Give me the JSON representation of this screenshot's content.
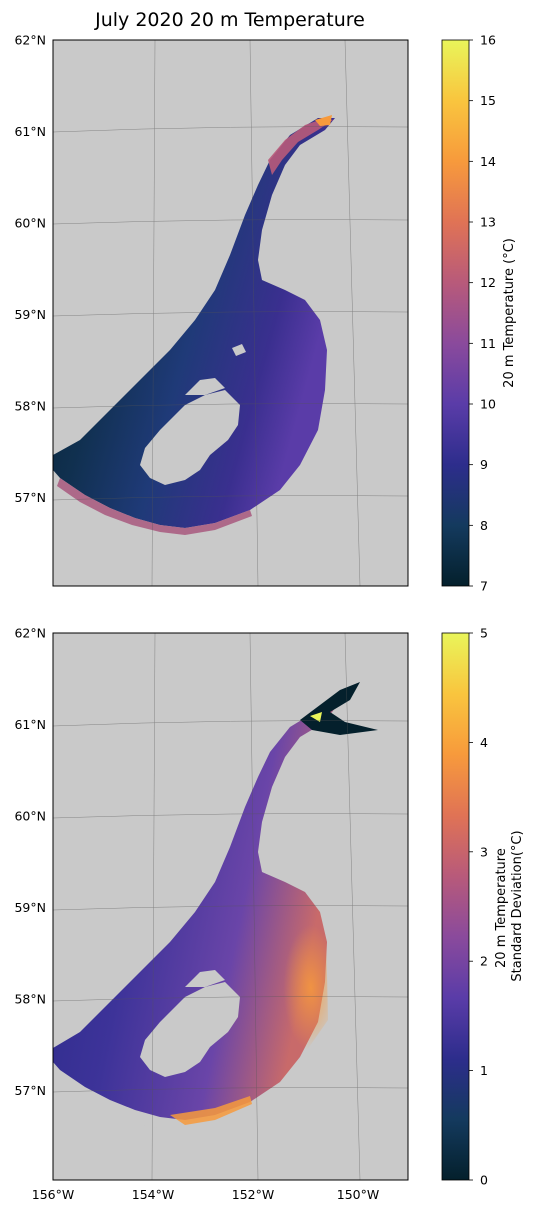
{
  "title": "July 2020 20 m Temperature",
  "colormap_stops": [
    "#04202c",
    "#143a5e",
    "#2d2d8c",
    "#5a3ca8",
    "#8a4a9c",
    "#b85a7a",
    "#e07355",
    "#f79a3c",
    "#f9c53e",
    "#e9f55a"
  ],
  "colors": {
    "land": "#c9c9c9",
    "lake": "#ffffff",
    "frame": "#000000",
    "gridline": "#555555"
  },
  "latitude_labels": [
    "62°N",
    "61°N",
    "60°N",
    "59°N",
    "58°N",
    "57°N"
  ],
  "longitude_labels": [
    "156°W",
    "154°W",
    "152°W",
    "150°W"
  ],
  "panels": [
    {
      "id": "temperature",
      "colorbar_label_lines": [
        "20 m Temperature (°C)"
      ],
      "colorbar_min": 7,
      "colorbar_max": 16,
      "colorbar_ticks": [
        "7",
        "8",
        "9",
        "10",
        "11",
        "12",
        "13",
        "14",
        "15",
        "16"
      ]
    },
    {
      "id": "std-dev",
      "colorbar_label_lines": [
        "20 m Temperature",
        "Standard Deviation(°C)"
      ],
      "colorbar_min": 0,
      "colorbar_max": 5,
      "colorbar_ticks": [
        "0",
        "1",
        "2",
        "3",
        "4",
        "5"
      ]
    }
  ]
}
